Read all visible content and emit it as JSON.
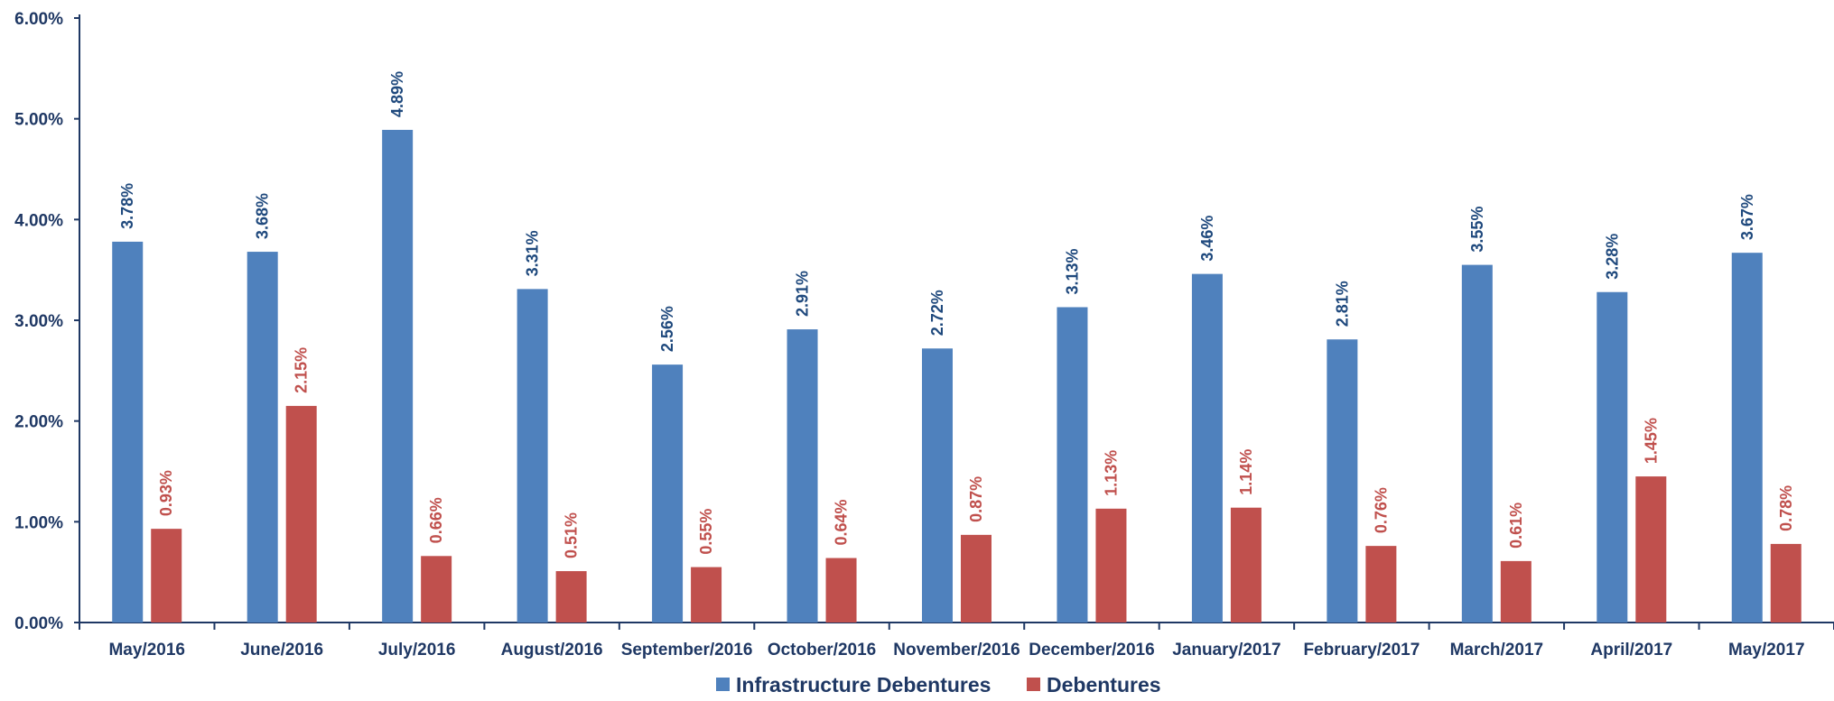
{
  "chart_data": {
    "type": "bar",
    "categories": [
      "May/2016",
      "June/2016",
      "July/2016",
      "August/2016",
      "September/2016",
      "October/2016",
      "November/2016",
      "December/2016",
      "January/2017",
      "February/2017",
      "March/2017",
      "April/2017",
      "May/2017"
    ],
    "series": [
      {
        "name": "Infrastructure Debentures",
        "values": [
          3.78,
          3.68,
          4.89,
          3.31,
          2.56,
          2.91,
          2.72,
          3.13,
          3.46,
          2.81,
          3.55,
          3.28,
          3.67
        ],
        "labels": [
          "3.78%",
          "3.68%",
          "4.89%",
          "3.31%",
          "2.56%",
          "2.91%",
          "2.72%",
          "3.13%",
          "3.46%",
          "2.81%",
          "3.55%",
          "3.28%",
          "3.67%"
        ],
        "color": "#4f81bd",
        "label_color": "#1f497d"
      },
      {
        "name": "Debentures",
        "values": [
          0.93,
          2.15,
          0.66,
          0.51,
          0.55,
          0.64,
          0.87,
          1.13,
          1.14,
          0.76,
          0.61,
          1.45,
          0.78
        ],
        "labels": [
          "0.93%",
          "2.15%",
          "0.66%",
          "0.51%",
          "0.55%",
          "0.64%",
          "0.87%",
          "1.13%",
          "1.14%",
          "0.76%",
          "0.61%",
          "1.45%",
          "0.78%"
        ],
        "color": "#c0504d",
        "label_color": "#c0504d"
      }
    ],
    "yticks": [
      "0.00%",
      "1.00%",
      "2.00%",
      "3.00%",
      "4.00%",
      "5.00%",
      "6.00%"
    ],
    "ylim": [
      0,
      6
    ],
    "axis_color": "#1f3864",
    "grid": false,
    "legend_position": "bottom"
  }
}
